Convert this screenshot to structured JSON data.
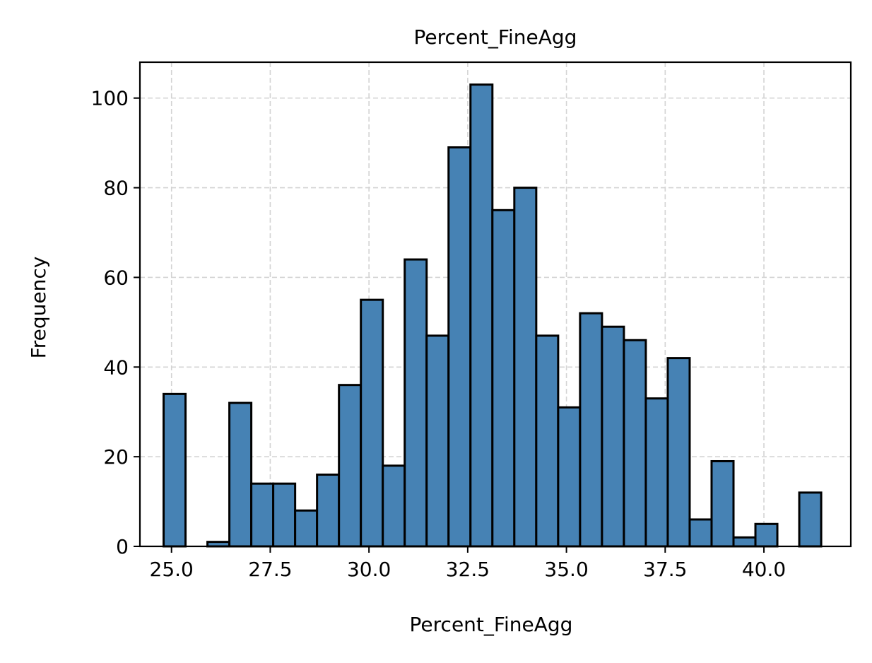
{
  "chart_data": {
    "type": "bar",
    "title": "Percent_FineAgg",
    "xlabel": "Percent_FineAgg",
    "ylabel": "Frequency",
    "bar_color": "#4682b4",
    "edge_color": "#000000",
    "grid": true,
    "xlim": [
      24.2,
      42.2
    ],
    "ylim": [
      0,
      108
    ],
    "xticks": [
      25.0,
      27.5,
      30.0,
      32.5,
      35.0,
      37.5,
      40.0
    ],
    "xtick_labels": [
      "25.0",
      "27.5",
      "30.0",
      "32.5",
      "35.0",
      "37.5",
      "40.0"
    ],
    "yticks": [
      0,
      20,
      40,
      60,
      80,
      100
    ],
    "ytick_labels": [
      "0",
      "20",
      "40",
      "60",
      "80",
      "100"
    ],
    "bin_start": 24.8,
    "bin_width": 0.555,
    "values": [
      34,
      0,
      1,
      32,
      14,
      14,
      8,
      16,
      36,
      55,
      18,
      64,
      47,
      89,
      103,
      75,
      80,
      47,
      31,
      52,
      49,
      46,
      33,
      42,
      6,
      19,
      2,
      5,
      0,
      12
    ]
  }
}
